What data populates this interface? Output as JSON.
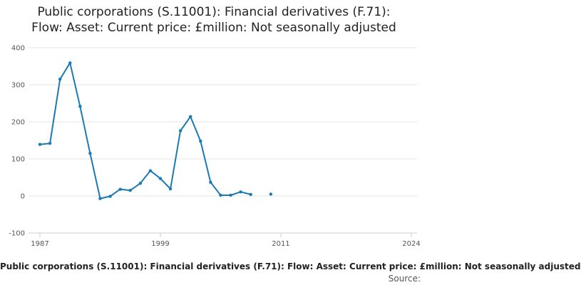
{
  "chart_data": {
    "type": "line",
    "title_lines": [
      "Public corporations (S.11001): Financial derivatives (F.71):",
      "Flow: Asset: Current price: £million: Not seasonally adjusted"
    ],
    "xlabel": "",
    "ylabel": "",
    "xlim": [
      1987,
      2024
    ],
    "ylim": [
      -100,
      400
    ],
    "x_ticks": [
      1987,
      1999,
      2011,
      2024
    ],
    "y_ticks": [
      -100,
      0,
      100,
      200,
      300,
      400
    ],
    "grid": "horizontal",
    "legend": "none",
    "line_color": "#1b79b3",
    "series": [
      {
        "points": [
          {
            "x": 1987,
            "y": 139
          },
          {
            "x": 1988,
            "y": 142
          },
          {
            "x": 1989,
            "y": 315
          },
          {
            "x": 1990,
            "y": 359
          },
          {
            "x": 1991,
            "y": 242
          },
          {
            "x": 1992,
            "y": 115
          },
          {
            "x": 1993,
            "y": -7
          },
          {
            "x": 1994,
            "y": -1
          },
          {
            "x": 1995,
            "y": 18
          },
          {
            "x": 1996,
            "y": 15
          },
          {
            "x": 1997,
            "y": 34
          },
          {
            "x": 1998,
            "y": 68
          },
          {
            "x": 1999,
            "y": 47
          },
          {
            "x": 2000,
            "y": 19
          },
          {
            "x": 2001,
            "y": 176
          },
          {
            "x": 2002,
            "y": 214
          },
          {
            "x": 2003,
            "y": 148
          },
          {
            "x": 2004,
            "y": 37
          },
          {
            "x": 2005,
            "y": 2
          },
          {
            "x": 2006,
            "y": 2
          },
          {
            "x": 2007,
            "y": 11
          },
          {
            "x": 2008,
            "y": 4
          },
          {
            "x": 2009,
            "y": null
          },
          {
            "x": 2010,
            "y": 5
          }
        ]
      }
    ]
  },
  "footer": {
    "caption": "Public corporations (S.11001): Financial derivatives (F.71): Flow: Asset: Current price: £million: Not seasonally adjusted",
    "source": "Source:"
  }
}
